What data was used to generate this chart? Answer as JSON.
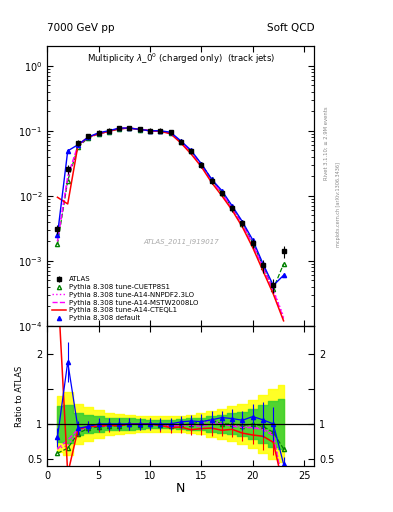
{
  "title_top_left": "7000 GeV pp",
  "title_top_right": "Soft QCD",
  "main_title": "Multiplicity $\\lambda\\_0^0$ (charged only)  (track jets)",
  "watermark": "ATLAS_2011_I919017",
  "right_label": "Rivet 3.1.10; ≥ 2.9M events",
  "right_label2": "mcplots.cern.ch [arXiv:1306.3436]",
  "ylabel_ratio": "Ratio to ATLAS",
  "xlabel": "N",
  "xlim": [
    0,
    26
  ],
  "ylim_main": [
    0.0001,
    2.0
  ],
  "ylim_ratio": [
    0.4,
    2.4
  ],
  "atlas_x": [
    1,
    2,
    3,
    4,
    5,
    6,
    7,
    8,
    9,
    10,
    11,
    12,
    13,
    14,
    15,
    16,
    17,
    18,
    19,
    20,
    21,
    22,
    23
  ],
  "atlas_y": [
    0.0031,
    0.026,
    0.065,
    0.083,
    0.093,
    0.1,
    0.11,
    0.11,
    0.105,
    0.1,
    0.1,
    0.095,
    0.068,
    0.048,
    0.03,
    0.017,
    0.011,
    0.0065,
    0.0038,
    0.0019,
    0.00085,
    0.00042,
    0.0014
  ],
  "atlas_yerr": [
    0.0005,
    0.004,
    0.007,
    0.007,
    0.008,
    0.009,
    0.009,
    0.009,
    0.009,
    0.009,
    0.009,
    0.008,
    0.006,
    0.004,
    0.003,
    0.002,
    0.001,
    0.0008,
    0.0005,
    0.0003,
    0.0002,
    0.0001,
    0.0003
  ],
  "pythia_default_x": [
    1,
    2,
    3,
    4,
    5,
    6,
    7,
    8,
    9,
    10,
    11,
    12,
    13,
    14,
    15,
    16,
    17,
    18,
    19,
    20,
    21,
    22,
    23
  ],
  "pythia_default_y": [
    0.0025,
    0.049,
    0.061,
    0.08,
    0.093,
    0.1,
    0.11,
    0.11,
    0.105,
    0.1,
    0.1,
    0.095,
    0.07,
    0.05,
    0.031,
    0.018,
    0.012,
    0.007,
    0.004,
    0.0021,
    0.0009,
    0.00042,
    0.0006
  ],
  "cteq_x": [
    1,
    2,
    3,
    4,
    5,
    6,
    7,
    8,
    9,
    10,
    11,
    12,
    13,
    14,
    15,
    16,
    17,
    18,
    19,
    20,
    21,
    22,
    23
  ],
  "cteq_y": [
    0.0095,
    0.0075,
    0.06,
    0.08,
    0.09,
    0.098,
    0.107,
    0.11,
    0.105,
    0.1,
    0.098,
    0.09,
    0.065,
    0.044,
    0.028,
    0.016,
    0.01,
    0.006,
    0.0033,
    0.0016,
    0.0007,
    0.00031,
    0.00012
  ],
  "mstw_x": [
    1,
    2,
    3,
    4,
    5,
    6,
    7,
    8,
    9,
    10,
    11,
    12,
    13,
    14,
    15,
    16,
    17,
    18,
    19,
    20,
    21,
    22,
    23
  ],
  "mstw_y": [
    0.002,
    0.02,
    0.06,
    0.08,
    0.09,
    0.098,
    0.108,
    0.11,
    0.104,
    0.1,
    0.098,
    0.092,
    0.067,
    0.047,
    0.029,
    0.017,
    0.011,
    0.0063,
    0.0036,
    0.0018,
    0.00078,
    0.00035,
    0.00013
  ],
  "nnpdf_x": [
    1,
    2,
    3,
    4,
    5,
    6,
    7,
    8,
    9,
    10,
    11,
    12,
    13,
    14,
    15,
    16,
    17,
    18,
    19,
    20,
    21,
    22,
    23
  ],
  "nnpdf_y": [
    0.002,
    0.018,
    0.058,
    0.079,
    0.09,
    0.098,
    0.108,
    0.11,
    0.104,
    0.1,
    0.099,
    0.092,
    0.067,
    0.047,
    0.03,
    0.018,
    0.011,
    0.0064,
    0.0037,
    0.0018,
    0.0008,
    0.00036,
    0.00014
  ],
  "cuetp_x": [
    1,
    2,
    3,
    4,
    5,
    6,
    7,
    8,
    9,
    10,
    11,
    12,
    13,
    14,
    15,
    16,
    17,
    18,
    19,
    20,
    21,
    22,
    23
  ],
  "cuetp_y": [
    0.0018,
    0.017,
    0.056,
    0.078,
    0.089,
    0.097,
    0.107,
    0.11,
    0.104,
    0.1,
    0.099,
    0.092,
    0.067,
    0.048,
    0.031,
    0.018,
    0.011,
    0.0065,
    0.0037,
    0.0019,
    0.00082,
    0.00037,
    0.0009
  ],
  "ratio_yellow_x": [
    1,
    2,
    3,
    4,
    5,
    6,
    7,
    8,
    9,
    10,
    11,
    12,
    13,
    14,
    15,
    16,
    17,
    18,
    19,
    20,
    21,
    22,
    23
  ],
  "ratio_yellow_low": [
    0.6,
    0.55,
    0.72,
    0.76,
    0.8,
    0.84,
    0.86,
    0.87,
    0.88,
    0.89,
    0.89,
    0.89,
    0.88,
    0.87,
    0.85,
    0.82,
    0.79,
    0.75,
    0.72,
    0.66,
    0.58,
    0.5,
    0.45
  ],
  "ratio_yellow_high": [
    1.4,
    1.45,
    1.28,
    1.24,
    1.2,
    1.16,
    1.14,
    1.13,
    1.12,
    1.11,
    1.11,
    1.11,
    1.12,
    1.13,
    1.15,
    1.18,
    1.21,
    1.25,
    1.28,
    1.34,
    1.42,
    1.5,
    1.55
  ],
  "ratio_green_low": [
    0.74,
    0.73,
    0.84,
    0.87,
    0.89,
    0.91,
    0.92,
    0.92,
    0.93,
    0.94,
    0.94,
    0.94,
    0.93,
    0.92,
    0.91,
    0.89,
    0.87,
    0.85,
    0.83,
    0.79,
    0.73,
    0.67,
    0.64
  ],
  "ratio_green_high": [
    1.26,
    1.27,
    1.16,
    1.13,
    1.11,
    1.09,
    1.08,
    1.08,
    1.07,
    1.06,
    1.06,
    1.06,
    1.07,
    1.08,
    1.09,
    1.11,
    1.13,
    1.15,
    1.17,
    1.21,
    1.27,
    1.33,
    1.36
  ]
}
